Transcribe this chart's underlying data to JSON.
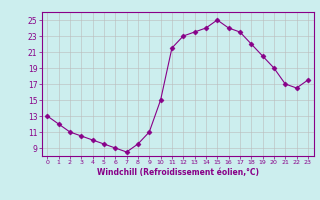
{
  "x": [
    0,
    1,
    2,
    3,
    4,
    5,
    6,
    7,
    8,
    9,
    10,
    11,
    12,
    13,
    14,
    15,
    16,
    17,
    18,
    19,
    20,
    21,
    22,
    23
  ],
  "y": [
    13,
    12,
    11,
    10.5,
    10,
    9.5,
    9,
    8.5,
    9.5,
    11,
    15,
    21.5,
    23,
    23.5,
    24,
    25,
    24,
    23.5,
    22,
    20.5,
    19,
    17,
    16.5,
    17.5
  ],
  "line_color": "#880088",
  "marker": "D",
  "marker_size": 2.5,
  "bg_color": "#cceeee",
  "grid_color": "#bbbbbb",
  "xlabel": "Windchill (Refroidissement éolien,°C)",
  "xlim": [
    -0.5,
    23.5
  ],
  "ylim": [
    8.0,
    26.0
  ],
  "yticks": [
    9,
    11,
    13,
    15,
    17,
    19,
    21,
    23,
    25
  ],
  "xticks": [
    0,
    1,
    2,
    3,
    4,
    5,
    6,
    7,
    8,
    9,
    10,
    11,
    12,
    13,
    14,
    15,
    16,
    17,
    18,
    19,
    20,
    21,
    22,
    23
  ],
  "tick_color": "#880088",
  "label_color": "#880088",
  "spine_color": "#880088"
}
